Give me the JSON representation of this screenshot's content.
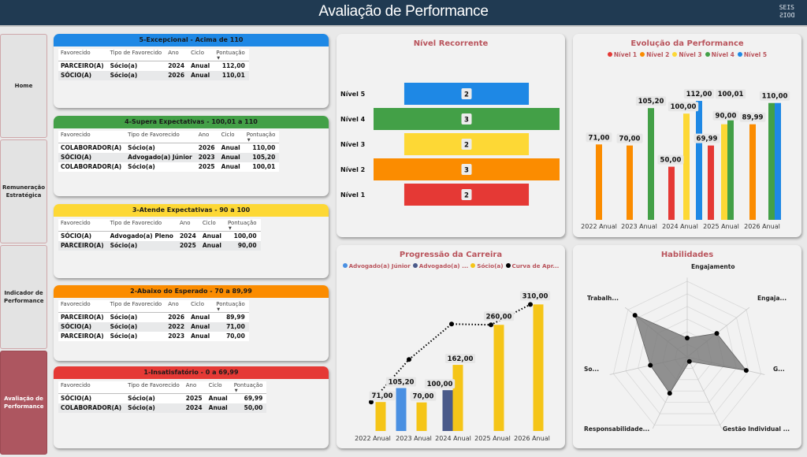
{
  "header": {
    "title": "Avaliação de Performance",
    "logo_top": "SEIS",
    "logo_bottom": "DOIS"
  },
  "nav": [
    {
      "label": "Home",
      "active": false
    },
    {
      "label": "Remuneração Estratégica",
      "active": false
    },
    {
      "label": "Indicador de Performance",
      "active": false
    },
    {
      "label": "Avaliação de Performance",
      "active": true
    }
  ],
  "table_columns": [
    "Favorecido",
    "Tipo de Favorecido",
    "Ano",
    "Ciclo",
    "Pontuação"
  ],
  "tables": [
    {
      "title": "5-Excepcional - Acima de 110",
      "color": "#1e88e5",
      "rows": [
        [
          "PARCEIRO(A)",
          "Sócio(a)",
          "2024",
          "Anual",
          "112,00"
        ],
        [
          "SÓCIO(A)",
          "Sócio(a)",
          "2026",
          "Anual",
          "110,01"
        ]
      ]
    },
    {
      "title": "4-Supera Expectativas - 100,01 a 110",
      "color": "#43a047",
      "rows": [
        [
          "COLABORADOR(A)",
          "Sócio(a)",
          "2026",
          "Anual",
          "110,00"
        ],
        [
          "SÓCIO(A)",
          "Advogado(a) Júnior",
          "2023",
          "Anual",
          "105,20"
        ],
        [
          "COLABORADOR(A)",
          "Sócio(a)",
          "2025",
          "Anual",
          "100,01"
        ]
      ]
    },
    {
      "title": "3-Atende Expectativas - 90 a 100",
      "color": "#fdd835",
      "rows": [
        [
          "SÓCIO(A)",
          "Advogado(a) Pleno",
          "2024",
          "Anual",
          "100,00"
        ],
        [
          "PARCEIRO(A)",
          "Sócio(a)",
          "2025",
          "Anual",
          "90,00"
        ]
      ]
    },
    {
      "title": "2-Abaixo do Esperado - 70 a 89,99",
      "color": "#fb8c00",
      "rows": [
        [
          "PARCEIRO(A)",
          "Sócio(a)",
          "2026",
          "Anual",
          "89,99"
        ],
        [
          "SÓCIO(A)",
          "Sócio(a)",
          "2022",
          "Anual",
          "71,00"
        ],
        [
          "PARCEIRO(A)",
          "Sócio(a)",
          "2023",
          "Anual",
          "70,00"
        ]
      ]
    },
    {
      "title": "1-Insatisfatório - 0 a 69,99",
      "color": "#e53935",
      "rows": [
        [
          "SÓCIO(A)",
          "Sócio(a)",
          "2025",
          "Anual",
          "69,99"
        ],
        [
          "COLABORADOR(A)",
          "Sócio(a)",
          "2024",
          "Anual",
          "50,00"
        ]
      ]
    }
  ],
  "chart_data": [
    {
      "type": "bar",
      "title": "Nível Recorrente",
      "subtype": "funnel",
      "categories": [
        "Nível 5",
        "Nível 4",
        "Nível 3",
        "Nível 2",
        "Nível 1"
      ],
      "values": [
        2,
        3,
        2,
        3,
        2
      ],
      "colors": [
        "#1e88e5",
        "#43a047",
        "#fdd835",
        "#fb8c00",
        "#e53935"
      ]
    },
    {
      "type": "bar",
      "title": "Evolução da Performance",
      "legend": [
        "Nível 1",
        "Nível 2",
        "Nível 3",
        "Nível 4",
        "Nível 5"
      ],
      "legend_colors": [
        "#e53935",
        "#fb8c00",
        "#fdd835",
        "#43a047",
        "#1e88e5"
      ],
      "legend_position": "top",
      "categories": [
        "2022 Anual",
        "2023 Anual",
        "2024 Anual",
        "2025 Anual",
        "2026 Anual"
      ],
      "series": [
        {
          "name": "Nível 1",
          "values": [
            null,
            null,
            50.0,
            69.99,
            null
          ]
        },
        {
          "name": "Nível 2",
          "values": [
            71.0,
            70.0,
            null,
            null,
            89.99
          ]
        },
        {
          "name": "Nível 3",
          "values": [
            null,
            null,
            100.0,
            90.0,
            null
          ]
        },
        {
          "name": "Nível 4",
          "values": [
            null,
            105.2,
            null,
            100.01,
            110.0
          ]
        },
        {
          "name": "Nível 5",
          "values": [
            null,
            null,
            112.0,
            null,
            110.01
          ]
        }
      ],
      "labels": [
        {
          "category": "2022 Anual",
          "text": "71,00"
        },
        {
          "category": "2023 Anual",
          "text": "70,00"
        },
        {
          "category": "2023 Anual",
          "text": "105,20"
        },
        {
          "category": "2024 Anual",
          "text": "50,00"
        },
        {
          "category": "2024 Anual",
          "text": "100,00"
        },
        {
          "category": "2024 Anual",
          "text": "112,00"
        },
        {
          "category": "2025 Anual",
          "text": "69,99"
        },
        {
          "category": "2025 Anual",
          "text": "90,00"
        },
        {
          "category": "2025 Anual",
          "text": "100,01"
        },
        {
          "category": "2026 Anual",
          "text": "89,99"
        },
        {
          "category": "2026 Anual",
          "text": "110,00"
        }
      ],
      "ylim": [
        0,
        115
      ]
    },
    {
      "type": "bar",
      "title": "Progressão da Carreira",
      "legend": [
        "Advogado(a) Júnior",
        "Advogado(a) ...",
        "Sócio(a)",
        "Curva de Apr..."
      ],
      "legend_colors": [
        "#4a90e2",
        "#4a5a8a",
        "#f5c518",
        "#000000"
      ],
      "legend_position": "top",
      "categories": [
        "2022 Anual",
        "2023 Anual",
        "2024 Anual",
        "2025 Anual",
        "2026 Anual"
      ],
      "series": [
        {
          "name": "Advogado(a) Júnior",
          "values": [
            null,
            105.2,
            null,
            null,
            null
          ]
        },
        {
          "name": "Advogado(a) Pleno",
          "values": [
            null,
            null,
            100.0,
            null,
            null
          ]
        },
        {
          "name": "Sócio(a)",
          "values": [
            71.0,
            70.0,
            162.0,
            260.0,
            310.0
          ]
        },
        {
          "name": "Curva de Aprendizado",
          "type": "line",
          "values": [
            71.0,
            175.2,
            262.0,
            260.0,
            310.0
          ]
        }
      ],
      "labels": [
        "71,00",
        "105,20",
        "70,00",
        "100,00",
        "162,00",
        "260,00",
        "310,00"
      ],
      "ylim": [
        0,
        330
      ]
    },
    {
      "type": "radar",
      "title": "Habilidades",
      "axes": [
        "Engajamento",
        "Engaja...",
        "G...",
        "Gestão Individual ...",
        "Responsabilidade...",
        "So...",
        "Trabalh..."
      ],
      "values": [
        1.5,
        3.0,
        4.8,
        0.4,
        3.2,
        3.0,
        5.3
      ],
      "rmax": 6
    }
  ]
}
